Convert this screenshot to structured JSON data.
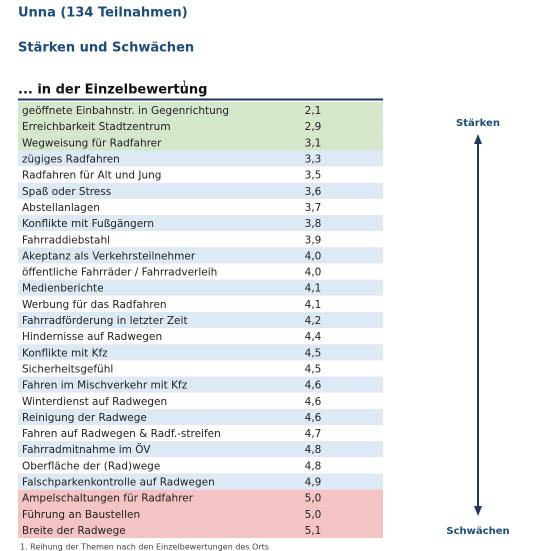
{
  "header": {
    "title": "Unna (134 Teilnahmen)",
    "subtitle": "Stärken und Schwächen",
    "section": "... in der Einzelbewertung",
    "footnote_mark": "1"
  },
  "table": {
    "rows": [
      [
        "geöffnete Einbahnstr. in Gegenrichtung",
        "2,1"
      ],
      [
        "Erreichbarkeit Stadtzentrum",
        "2,9"
      ],
      [
        "Wegweisung für Radfahrer",
        "3,1"
      ],
      [
        "zügiges Radfahren",
        "3,3"
      ],
      [
        "Radfahren für Alt und Jung",
        "3,5"
      ],
      [
        "Spaß oder Stress",
        "3,6"
      ],
      [
        "Abstellanlagen",
        "3,7"
      ],
      [
        "Konflikte mit Fußgängern",
        "3,8"
      ],
      [
        "Fahrraddiebstahl",
        "3,9"
      ],
      [
        "Akeptanz als Verkehrsteilnehmer",
        "4,0"
      ],
      [
        "öffentliche Fahrräder / Fahrradverleih",
        "4,0"
      ],
      [
        "Medienberichte",
        "4,1"
      ],
      [
        "Werbung für das Radfahren",
        "4,1"
      ],
      [
        "Fahrradförderung in letzter Zeit",
        "4,2"
      ],
      [
        "Hindernisse auf Radwegen",
        "4,4"
      ],
      [
        "Konflikte mit Kfz",
        "4,5"
      ],
      [
        "Sicherheitsgefühl",
        "4,5"
      ],
      [
        "Fahren im Mischverkehr mit Kfz",
        "4,6"
      ],
      [
        "Winterdienst auf Radwegen",
        "4,6"
      ],
      [
        "Reinigung der Radwege",
        "4,6"
      ],
      [
        "Fahren auf Radwegen & Radf.-streifen",
        "4,7"
      ],
      [
        "Fahrradmitnahme im ÖV",
        "4,8"
      ],
      [
        "Oberfläche der (Rad)wege",
        "4,8"
      ],
      [
        "Falschparkenkontrolle auf Radwegen",
        "4,9"
      ],
      [
        "Ampelschaltungen für Radfahrer",
        "5,0"
      ],
      [
        "Führung an Baustellen",
        "5,0"
      ],
      [
        "Breite der Radwege",
        "5,1"
      ]
    ]
  },
  "scale": {
    "top": "Stärken",
    "bottom": "Schwächen"
  },
  "footnote": "1. Reihung der Themen nach den Einzelbewertungen des Orts"
}
